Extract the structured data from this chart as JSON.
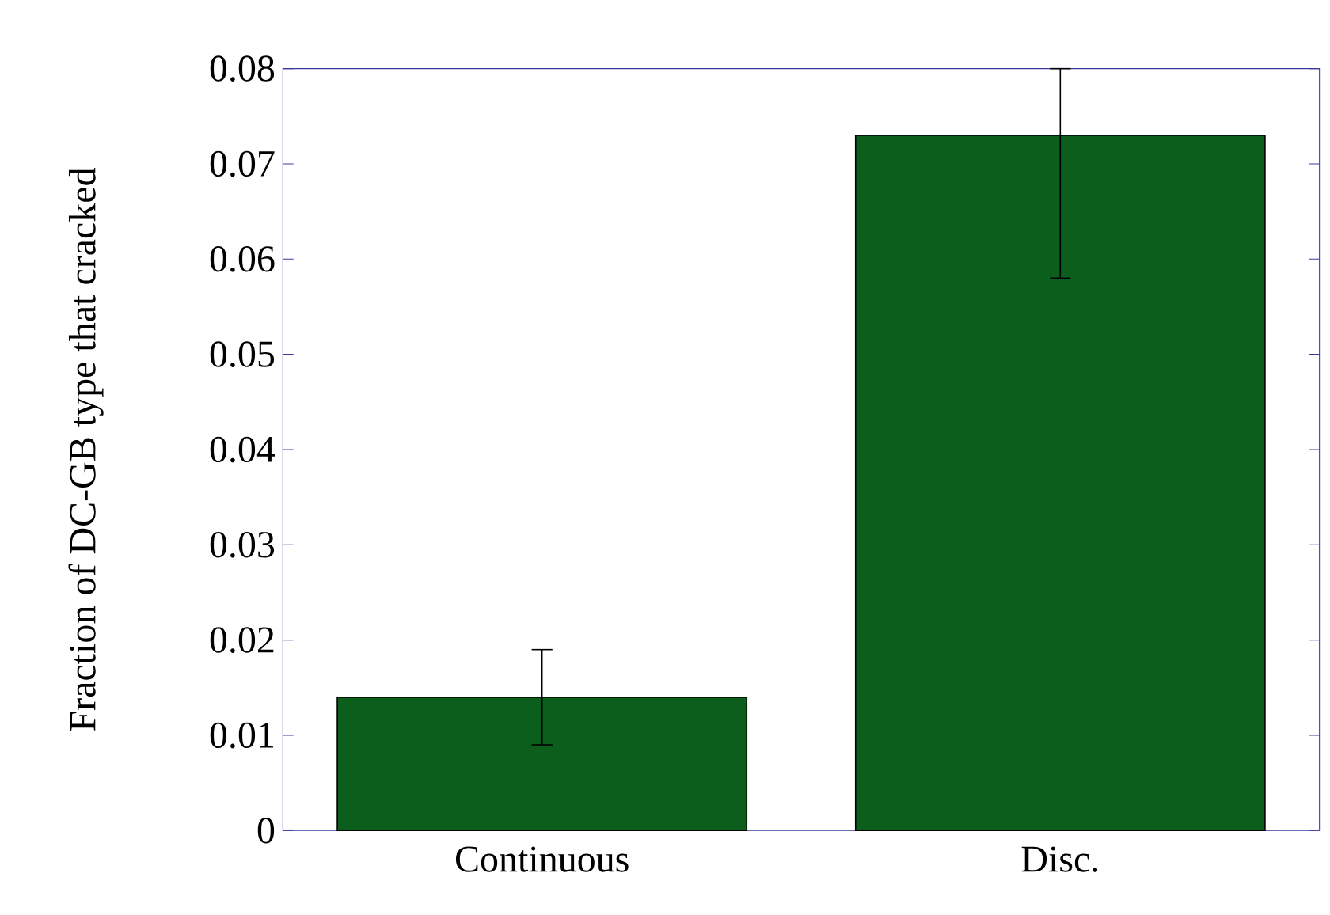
{
  "chart_data": {
    "type": "bar",
    "ylabel": "Fraction of DC-GB type that cracked",
    "categories": [
      "Continuous",
      "Disc."
    ],
    "values": [
      0.014,
      0.073
    ],
    "errors": [
      [
        0.009,
        0.019
      ],
      [
        0.058,
        0.08
      ]
    ],
    "color": "#0b5e1c",
    "ylim": [
      0,
      0.08
    ],
    "yticks": [
      {
        "value": 0,
        "label": "0"
      },
      {
        "value": 0.01,
        "label": "0.01"
      },
      {
        "value": 0.02,
        "label": "0.02"
      },
      {
        "value": 0.03,
        "label": "0.03"
      },
      {
        "value": 0.04,
        "label": "0.04"
      },
      {
        "value": 0.05,
        "label": "0.05"
      },
      {
        "value": 0.06,
        "label": "0.06"
      },
      {
        "value": 0.07,
        "label": "0.07"
      },
      {
        "value": 0.08,
        "label": "0.08"
      }
    ],
    "grid": false
  }
}
